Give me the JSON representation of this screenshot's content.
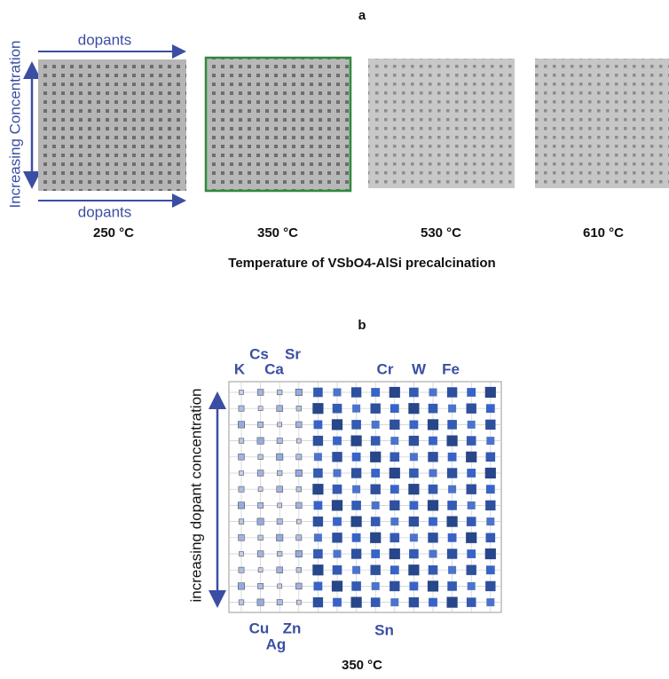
{
  "panel_a": {
    "label": "a",
    "top_arrow_label": "dopants",
    "bottom_arrow_label": "dopants",
    "side_arrow_label": "Increasing Concentration",
    "temperatures": [
      "250 °C",
      "350 °C",
      "530 °C",
      "610 °C"
    ],
    "caption": "Temperature of VSbO4-AlSi precalcination"
  },
  "panel_b": {
    "label": "b",
    "top_elements": [
      "K",
      "Cs",
      "Ca",
      "Sr",
      "Cr",
      "W",
      "Fe"
    ],
    "bottom_elements": [
      "Cu",
      "Ag",
      "Zn",
      "Sn"
    ],
    "side_label": "increasing dopant concentration",
    "caption": "350 °C"
  }
}
